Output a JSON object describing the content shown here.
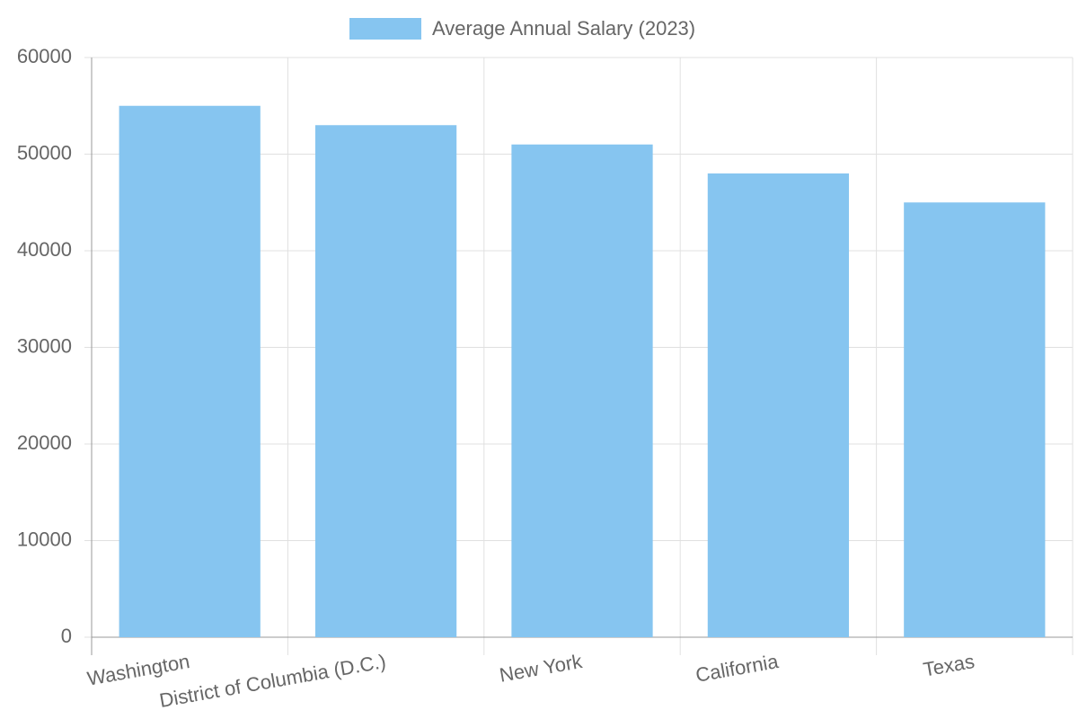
{
  "chart_data": {
    "type": "bar",
    "categories": [
      "Washington",
      "District of Columbia (D.C.)",
      "New York",
      "California",
      "Texas"
    ],
    "series": [
      {
        "name": "Average Annual Salary (2023)",
        "color": "#86c5f0",
        "values": [
          55000,
          53000,
          51000,
          48000,
          45000
        ]
      }
    ],
    "ylim": [
      0,
      60000
    ],
    "yticks": [
      0,
      10000,
      20000,
      30000,
      40000,
      50000,
      60000
    ],
    "grid": true,
    "legend": "top"
  }
}
